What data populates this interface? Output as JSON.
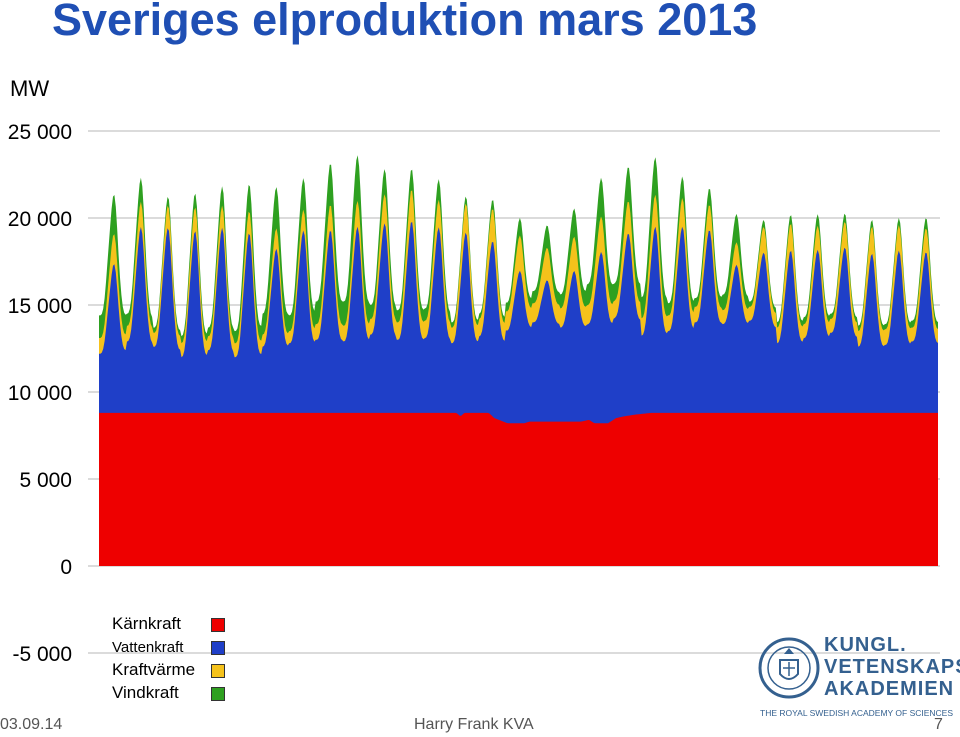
{
  "page": {
    "footer_date": "03.09.14",
    "footer_author": "Harry Frank KVA",
    "footer_page": "7"
  },
  "logo": {
    "line1": "KUNGL.",
    "line2": "VETENSKAPS",
    "line3": "AKADEMIEN",
    "subtitle": "THE ROYAL SWEDISH ACADEMY OF SCIENCES"
  },
  "chart_data": {
    "type": "area",
    "stacked": true,
    "title": "Sveriges elproduktion mars 2013",
    "ylabel": "MW",
    "ylim": [
      -5000,
      25000
    ],
    "yticks": [
      -5000,
      0,
      5000,
      10000,
      15000,
      20000,
      25000
    ],
    "ytick_labels": [
      "-5 000",
      "0",
      "5 000",
      "10 000",
      "15 000",
      "20 000",
      "25 000"
    ],
    "x_unit": "day of month",
    "xlim": [
      1,
      31.99
    ],
    "grid": true,
    "legend_position": "bottom-left",
    "series": [
      {
        "name": "Kärnkraft",
        "color": "#ee0000",
        "points": [
          [
            1,
            8800
          ],
          [
            14.2,
            8800
          ],
          [
            14.35,
            8600
          ],
          [
            14.5,
            8800
          ],
          [
            15.4,
            8800
          ],
          [
            15.6,
            8500
          ],
          [
            16.1,
            8200
          ],
          [
            16.7,
            8200
          ],
          [
            16.9,
            8300
          ],
          [
            18.8,
            8300
          ],
          [
            19.1,
            8400
          ],
          [
            19.3,
            8200
          ],
          [
            19.8,
            8200
          ],
          [
            20.1,
            8500
          ],
          [
            20.4,
            8600
          ],
          [
            20.8,
            8700
          ],
          [
            21.4,
            8800
          ],
          [
            31.99,
            8800
          ]
        ]
      },
      {
        "name": "Vattenkraft",
        "color": "#1f3fc8",
        "daily_peak": [
          8600,
          11000,
          11000,
          10800,
          11000,
          10800,
          9600,
          10800,
          10800,
          11000,
          11200,
          11400,
          11000,
          10700,
          10500,
          9000,
          8200,
          8700,
          10000,
          10700,
          11000,
          11000,
          11000,
          8600,
          9400,
          9600,
          9600,
          9800,
          9400,
          9600,
          9500,
          9600
        ],
        "daily_trough": [
          3400,
          4100,
          3800,
          3200,
          3600,
          3200,
          3800,
          4000,
          4200,
          4100,
          4500,
          4200,
          4300,
          4000,
          4400,
          5300,
          5700,
          5400,
          5500,
          5800,
          4500,
          4700,
          5200,
          5100,
          5300,
          4000,
          4300,
          4600,
          3800,
          3900,
          4100,
          3800
        ]
      },
      {
        "name": "Kraftvärme",
        "color": "#f5c21b",
        "daily_peak": [
          1800,
          1500,
          1300,
          1400,
          1300,
          1300,
          1200,
          1200,
          1500,
          1500,
          1700,
          1900,
          1600,
          1700,
          1900,
          2100,
          1900,
          2000,
          2100,
          1900,
          1900,
          1700,
          1500,
          1300,
          1500,
          1600,
          1400,
          1500,
          1600,
          1500,
          1400,
          1400
        ],
        "daily_trough": [
          900,
          900,
          800,
          800,
          800,
          800,
          700,
          700,
          900,
          900,
          900,
          1000,
          1000,
          900,
          1000,
          1100,
          1100,
          1100,
          1100,
          1000,
          1000,
          900,
          900,
          800,
          800,
          900,
          800,
          800,
          900,
          900,
          800,
          800
        ]
      },
      {
        "name": "Vindkraft",
        "color": "#2ea020",
        "daily_peak": [
          2400,
          1500,
          500,
          800,
          1100,
          1500,
          2500,
          1800,
          2400,
          2800,
          1500,
          1200,
          1300,
          400,
          500,
          1000,
          1300,
          1600,
          2300,
          2000,
          2300,
          1300,
          900,
          1800,
          400,
          500,
          700,
          500,
          400,
          400,
          600,
          700
        ],
        "daily_trough": [
          1300,
          700,
          300,
          400,
          500,
          700,
          1200,
          900,
          1300,
          1400,
          800,
          700,
          700,
          300,
          300,
          500,
          700,
          800,
          1200,
          1000,
          1200,
          700,
          500,
          900,
          300,
          300,
          400,
          300,
          300,
          300,
          400,
          400
        ]
      }
    ]
  }
}
